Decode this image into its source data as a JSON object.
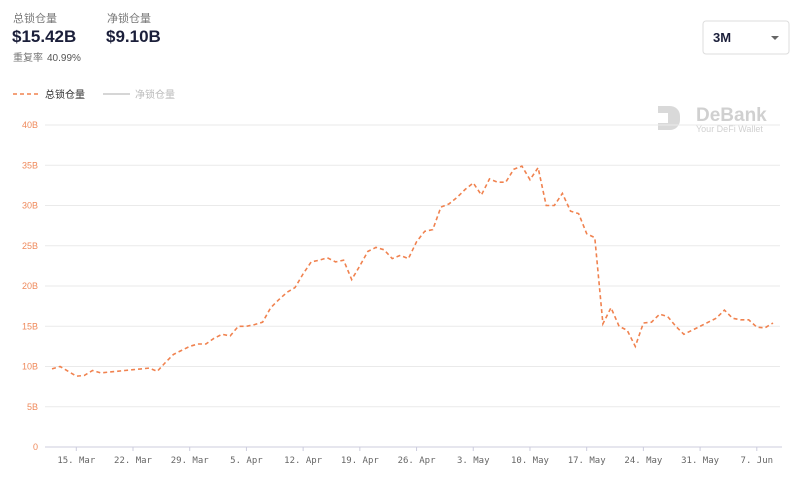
{
  "header": {
    "tvl_label": "总锁仓量",
    "tvl_value": "$15.42B",
    "net_label": "净锁仓量",
    "net_value": "$9.10B",
    "repeat_label": "重复率",
    "repeat_value": "40.99%"
  },
  "range_select": "3M",
  "watermark": {
    "brand": "DeBank",
    "tagline": "Your DeFi Wallet"
  },
  "chart_data": {
    "type": "line",
    "categories": [
      null,
      null,
      null,
      "15. Mar",
      null,
      null,
      null,
      null,
      null,
      null,
      "22. Mar",
      null,
      null,
      null,
      null,
      null,
      null,
      "29. Mar",
      null,
      null,
      null,
      null,
      null,
      null,
      "5. Apr",
      null,
      null,
      null,
      null,
      null,
      null,
      "12. Apr",
      null,
      null,
      null,
      null,
      null,
      null,
      "19. Apr",
      null,
      null,
      null,
      null,
      null,
      null,
      "26. Apr",
      null,
      null,
      null,
      null,
      null,
      null,
      "3. May",
      null,
      null,
      null,
      null,
      null,
      null,
      "10. May",
      null,
      null,
      null,
      null,
      null,
      null,
      "17. May",
      null,
      null,
      null,
      null,
      null,
      null,
      "24. May",
      null,
      null,
      null,
      null,
      null,
      null,
      "31. May",
      null,
      null,
      null,
      null,
      null,
      null,
      "7. Jun",
      null,
      null
    ],
    "series": [
      {
        "name": "总锁仓量",
        "color": "#f0824f",
        "values": [
          9.7,
          10.0,
          9.4,
          8.8,
          8.9,
          9.5,
          9.2,
          9.3,
          9.4,
          9.5,
          9.6,
          9.7,
          9.8,
          9.4,
          10.5,
          11.5,
          12.0,
          12.5,
          12.8,
          12.8,
          13.5,
          14.0,
          13.8,
          15.0,
          15.0,
          15.2,
          15.5,
          17.3,
          18.3,
          19.2,
          19.8,
          21.5,
          23.0,
          23.2,
          23.5,
          23.0,
          23.2,
          20.8,
          22.5,
          24.3,
          24.8,
          24.5,
          23.4,
          23.8,
          23.4,
          25.5,
          26.8,
          27.0,
          29.8,
          30.2,
          31.0,
          32.0,
          32.8,
          31.3,
          33.3,
          32.9,
          32.9,
          34.5,
          34.9,
          33.2,
          34.7,
          30.0,
          30.0,
          31.5,
          29.3,
          29.0,
          26.5,
          26.0,
          15.3,
          17.3,
          15.0,
          14.5,
          12.5,
          15.4,
          15.5,
          16.5,
          16.2,
          15.0,
          14.0,
          14.5,
          15.0,
          15.5,
          16.0,
          17.0,
          16.0,
          15.8,
          15.8,
          14.9,
          14.8,
          15.4
        ]
      },
      {
        "name": "净锁仓量",
        "color": "#c8c8c8",
        "values": [
          null,
          null,
          null,
          null,
          null,
          null,
          null,
          null,
          null,
          null,
          null,
          null,
          null,
          null,
          null,
          null,
          null,
          null,
          null,
          null,
          null,
          null,
          null,
          null,
          null,
          null,
          null,
          null,
          null,
          null,
          null,
          null,
          null,
          null,
          null,
          null,
          null,
          null,
          null,
          null,
          null,
          null,
          null,
          null,
          null,
          null,
          null,
          null,
          null,
          null,
          null,
          null,
          null,
          null,
          null,
          null,
          null,
          null,
          null,
          null,
          null,
          null,
          null,
          null,
          null,
          null,
          null,
          null,
          null,
          null,
          null,
          null,
          null,
          null,
          null,
          null,
          null,
          null,
          null,
          null,
          null,
          null,
          null,
          null,
          null,
          null,
          null,
          null,
          null,
          null
        ]
      }
    ],
    "ylim": [
      0,
      40
    ],
    "yticks": [
      0,
      {
        "value": 5,
        "label": "5B"
      },
      {
        "value": 10,
        "label": "10B"
      },
      {
        "value": 15,
        "label": "15B"
      },
      {
        "value": 20,
        "label": "20B"
      },
      {
        "value": 25,
        "label": "25B"
      },
      {
        "value": 30,
        "label": "30B"
      },
      {
        "value": 35,
        "label": "35B"
      },
      {
        "value": 40,
        "label": "40B"
      }
    ],
    "grid": true,
    "dashed": true
  }
}
